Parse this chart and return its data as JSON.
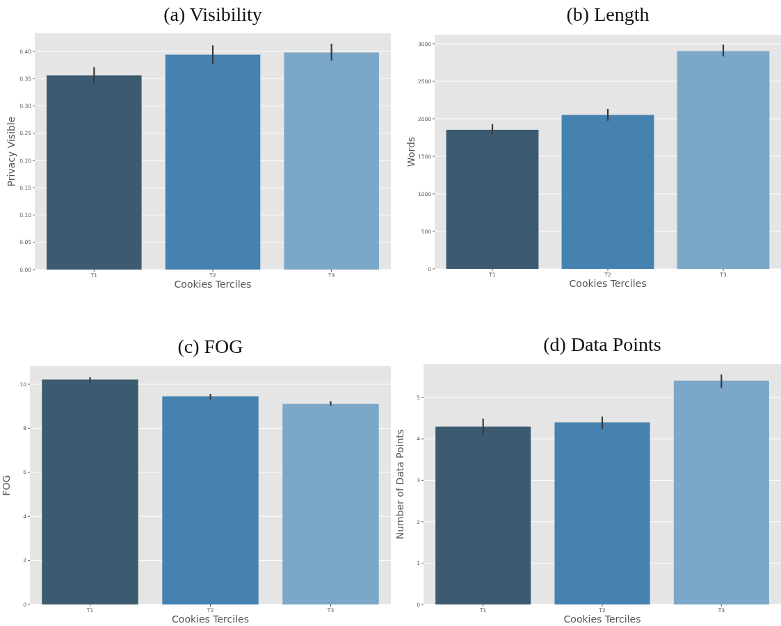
{
  "chart_data": [
    {
      "type": "bar",
      "title": "(a) Visibility",
      "xlabel": "Cookies Terciles",
      "ylabel": "Privacy Visible",
      "categories": [
        "T1",
        "T2",
        "T3"
      ],
      "values": [
        0.356,
        0.394,
        0.398
      ],
      "colors": [
        "#3c5a70",
        "#4682b0",
        "#7ba7c8"
      ],
      "errors": [
        [
          0.342,
          0.371
        ],
        [
          0.377,
          0.411
        ],
        [
          0.383,
          0.414
        ]
      ],
      "ylim": [
        0,
        0.433
      ],
      "yticks": [
        {
          "value": 0,
          "label": "0.00"
        },
        {
          "value": 0.05,
          "label": "0.05"
        },
        {
          "value": 0.1,
          "label": "0.10"
        },
        {
          "value": 0.15,
          "label": "0.15"
        },
        {
          "value": 0.2,
          "label": "0.20"
        },
        {
          "value": 0.25,
          "label": "0.25"
        },
        {
          "value": 0.3,
          "label": "0.30"
        },
        {
          "value": 0.35,
          "label": "0.35"
        },
        {
          "value": 0.4,
          "label": "0.40"
        }
      ],
      "grid": "y"
    },
    {
      "type": "bar",
      "title": "(b) Length",
      "xlabel": "Cookies Terciles",
      "ylabel": "Words",
      "categories": [
        "T1",
        "T2",
        "T3"
      ],
      "values": [
        1853,
        2052,
        2902
      ],
      "colors": [
        "#3c5a70",
        "#4682b0",
        "#7ba7c8"
      ],
      "errors": [
        [
          1794,
          1931
        ],
        [
          1974,
          2131
        ],
        [
          2830,
          2987
        ]
      ],
      "ylim": [
        0,
        3120
      ],
      "yticks": [
        0,
        500,
        1000,
        1500,
        2000,
        2500,
        3000
      ],
      "grid": "y"
    },
    {
      "type": "bar",
      "title": "(c) FOG",
      "xlabel": "Cookies Terciles",
      "ylabel": "FOG",
      "categories": [
        "T1",
        "T2",
        "T3"
      ],
      "values": [
        10.21,
        9.45,
        9.11
      ],
      "colors": [
        "#3c5a70",
        "#4682b0",
        "#7ba7c8"
      ],
      "errors": [
        [
          10.07,
          10.32
        ],
        [
          9.31,
          9.56
        ],
        [
          9.03,
          9.23
        ]
      ],
      "ylim": [
        0,
        10.82
      ],
      "yticks": [
        0,
        2,
        4,
        6,
        8,
        10
      ],
      "grid": "y"
    },
    {
      "type": "bar",
      "title": "(d) Data Points",
      "xlabel": "Cookies Terciles",
      "ylabel": "Number of Data Points",
      "categories": [
        "T1",
        "T2",
        "T3"
      ],
      "values": [
        4.3,
        4.4,
        5.41
      ],
      "colors": [
        "#3c5a70",
        "#4682b0",
        "#7ba7c8"
      ],
      "errors": [
        [
          4.1,
          4.49
        ],
        [
          4.24,
          4.54
        ],
        [
          5.23,
          5.56
        ]
      ],
      "ylim": [
        0,
        5.81
      ],
      "yticks": [
        0,
        1,
        2,
        3,
        4,
        5
      ],
      "grid": "y"
    }
  ]
}
